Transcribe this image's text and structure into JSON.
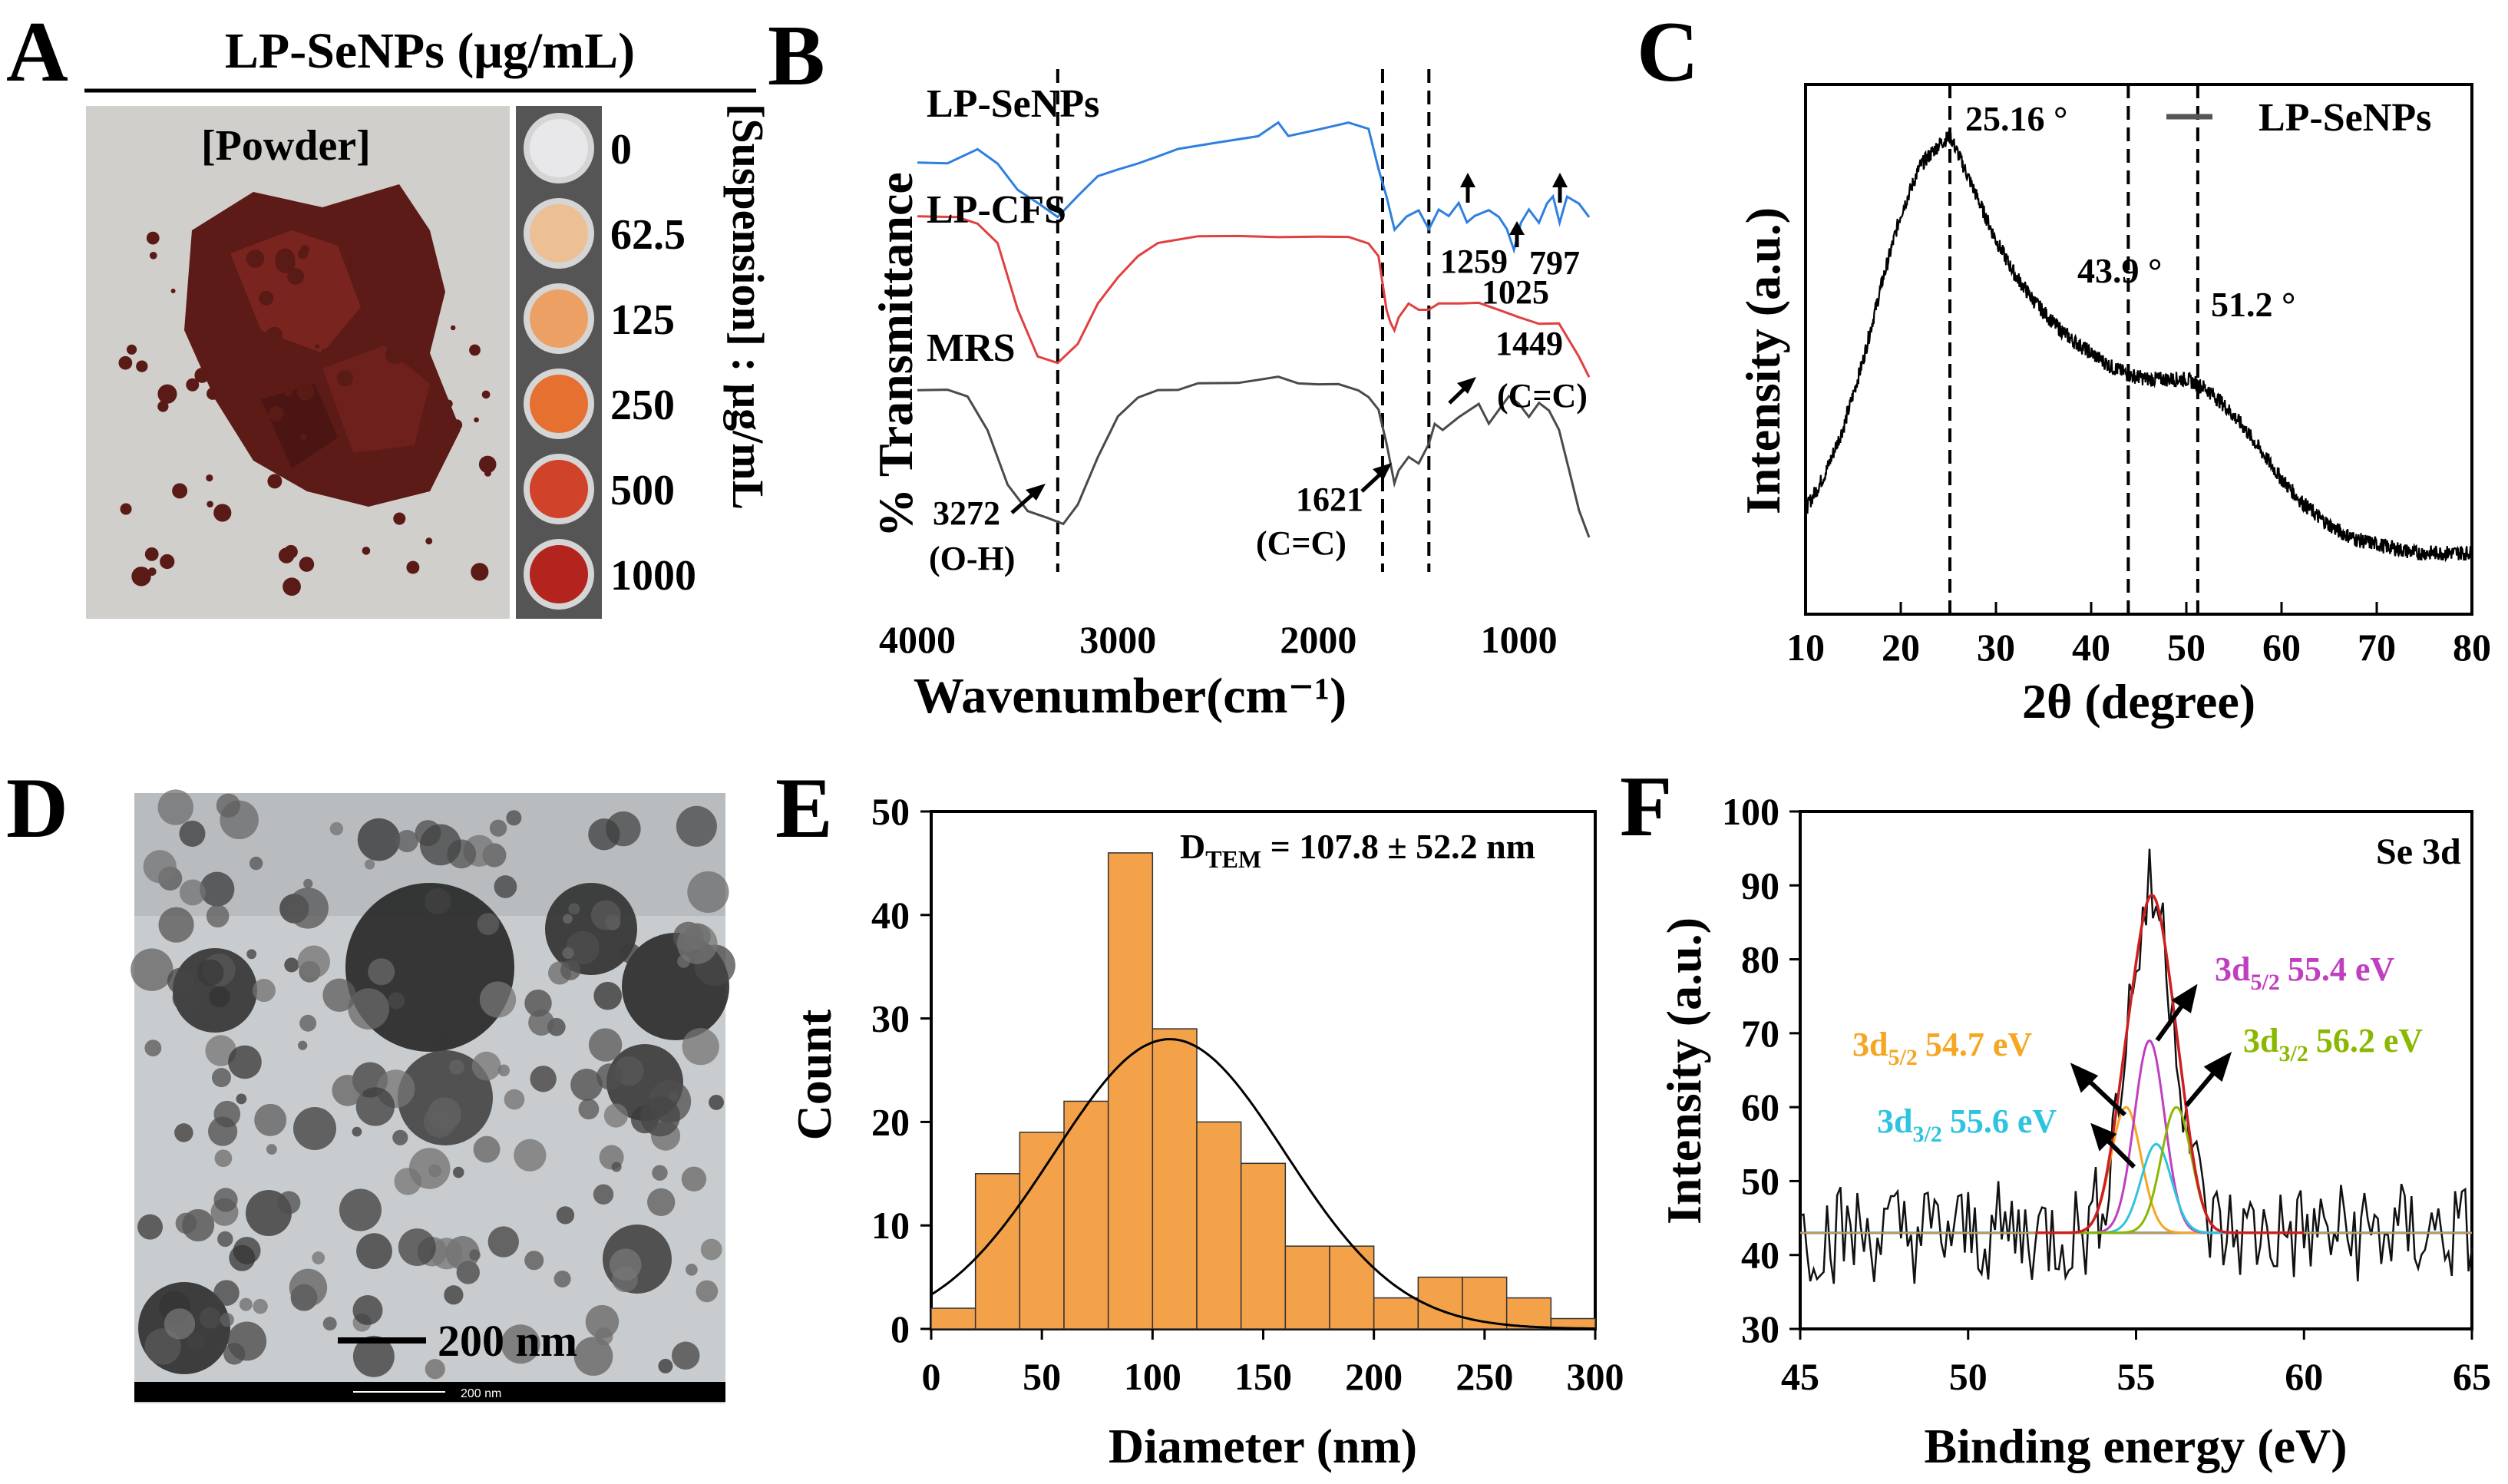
{
  "colors": {
    "blue": "#2f7fe0",
    "red": "#e04040",
    "gray": "#4a4a4a",
    "orange": "#f4a24a",
    "xps_orange": "#f5a623",
    "xps_purple": "#c03ec0",
    "xps_green": "#8ab800",
    "xps_cyan": "#2ec4e0",
    "xps_red": "#cc2020",
    "xps_base": "#2070d0"
  },
  "panelA": {
    "letter": "A",
    "title": "LP-SeNPs (μg/mL)",
    "powder_label": "[Powder]",
    "side_label": "[Suspension] : μg/mL",
    "concentrations": [
      "0",
      "62.5",
      "125",
      "250",
      "500",
      "1000"
    ],
    "well_colors": [
      "#e8e8ea",
      "#ecbf95",
      "#eda064",
      "#e6702f",
      "#d0422a",
      "#b3241f"
    ]
  },
  "panelB": {
    "letter": "B",
    "chart_data": {
      "type": "line",
      "xlabel": "Wavenumber(cm⁻¹)",
      "ylabel": "% Transmittance",
      "xlim": [
        4000,
        650
      ],
      "xticks": [
        "4000",
        "3000",
        "2000",
        "1000"
      ],
      "series": [
        {
          "name": "LP-SeNPs",
          "color": "#2f7fe0",
          "x": [
            4000,
            3850,
            3700,
            3600,
            3500,
            3400,
            3300,
            3200,
            3100,
            3000,
            2900,
            2800,
            2700,
            2500,
            2300,
            2200,
            2150,
            2000,
            1850,
            1750,
            1700,
            1660,
            1620,
            1560,
            1500,
            1449,
            1400,
            1350,
            1300,
            1259,
            1220,
            1150,
            1100,
            1060,
            1025,
            990,
            950,
            900,
            860,
            830,
            797,
            760,
            700,
            650
          ],
          "y": [
            0.84,
            0.84,
            0.86,
            0.84,
            0.8,
            0.78,
            0.76,
            0.79,
            0.82,
            0.83,
            0.84,
            0.85,
            0.86,
            0.87,
            0.88,
            0.9,
            0.88,
            0.89,
            0.9,
            0.89,
            0.83,
            0.79,
            0.74,
            0.76,
            0.77,
            0.74,
            0.77,
            0.76,
            0.78,
            0.75,
            0.76,
            0.77,
            0.76,
            0.74,
            0.71,
            0.75,
            0.77,
            0.75,
            0.78,
            0.79,
            0.75,
            0.79,
            0.78,
            0.76
          ]
        },
        {
          "name": "LP-CFS",
          "color": "#e04040",
          "x": [
            4000,
            3800,
            3700,
            3600,
            3500,
            3400,
            3300,
            3200,
            3100,
            3000,
            2900,
            2800,
            2600,
            2400,
            2200,
            2000,
            1850,
            1750,
            1700,
            1660,
            1640,
            1621,
            1600,
            1550,
            1500,
            1450,
            1400,
            1300,
            1200,
            1100,
            1000,
            900,
            800,
            700,
            650
          ],
          "y": [
            0.76,
            0.76,
            0.75,
            0.72,
            0.62,
            0.55,
            0.54,
            0.57,
            0.63,
            0.67,
            0.7,
            0.72,
            0.73,
            0.73,
            0.73,
            0.73,
            0.73,
            0.72,
            0.7,
            0.62,
            0.6,
            0.59,
            0.61,
            0.63,
            0.62,
            0.62,
            0.63,
            0.63,
            0.63,
            0.62,
            0.61,
            0.6,
            0.6,
            0.55,
            0.52
          ]
        },
        {
          "name": "MRS",
          "color": "#4a4a4a",
          "x": [
            4000,
            3850,
            3750,
            3650,
            3550,
            3450,
            3350,
            3272,
            3200,
            3100,
            3000,
            2900,
            2800,
            2700,
            2600,
            2400,
            2200,
            2100,
            2000,
            1900,
            1800,
            1750,
            1700,
            1660,
            1621,
            1600,
            1550,
            1500,
            1449,
            1420,
            1380,
            1300,
            1200,
            1150,
            1100,
            1050,
            1000,
            950,
            900,
            850,
            800,
            750,
            700,
            650
          ],
          "y": [
            0.5,
            0.5,
            0.49,
            0.44,
            0.36,
            0.32,
            0.31,
            0.3,
            0.33,
            0.4,
            0.46,
            0.49,
            0.5,
            0.5,
            0.51,
            0.51,
            0.52,
            0.51,
            0.51,
            0.51,
            0.5,
            0.49,
            0.47,
            0.42,
            0.36,
            0.38,
            0.4,
            0.39,
            0.42,
            0.45,
            0.44,
            0.46,
            0.48,
            0.45,
            0.47,
            0.49,
            0.48,
            0.46,
            0.48,
            0.47,
            0.44,
            0.38,
            0.32,
            0.28
          ]
        }
      ],
      "dashed_lines": [
        3300,
        1680,
        1449
      ],
      "annotations": [
        {
          "label": "3272",
          "sub": "(O-H)"
        },
        {
          "label": "1621",
          "sub": "(C=C)"
        },
        {
          "label": "1449",
          "sub": "(C=C)"
        },
        {
          "label": "1259"
        },
        {
          "label": "1025"
        },
        {
          "label": "797"
        }
      ]
    }
  },
  "panelC": {
    "letter": "C",
    "chart_data": {
      "type": "line",
      "xlabel": "2θ (degree)",
      "ylabel": "Intensity (a.u.)",
      "xlim": [
        10,
        80
      ],
      "xticks": [
        "10",
        "20",
        "30",
        "40",
        "50",
        "60",
        "70",
        "80"
      ],
      "legend": "LP-SeNPs",
      "peaks": [
        {
          "x": 25.16,
          "label": "25.16 °"
        },
        {
          "x": 43.9,
          "label": "43.9 °"
        },
        {
          "x": 51.2,
          "label": "51.2 °"
        }
      ],
      "series": [
        {
          "name": "LP-SeNPs",
          "x": [
            10,
            12,
            14,
            16,
            18,
            20,
            22,
            24,
            25.16,
            26,
            28,
            30,
            32,
            34,
            36,
            38,
            40,
            42,
            44,
            46,
            48,
            50,
            52,
            54,
            56,
            58,
            60,
            62,
            64,
            66,
            68,
            70,
            72,
            74,
            76,
            78,
            80
          ],
          "y": [
            0.18,
            0.26,
            0.37,
            0.52,
            0.7,
            0.86,
            0.97,
            1.02,
            1.04,
            1.0,
            0.9,
            0.8,
            0.72,
            0.66,
            0.61,
            0.57,
            0.54,
            0.51,
            0.49,
            0.48,
            0.48,
            0.48,
            0.46,
            0.42,
            0.37,
            0.31,
            0.25,
            0.2,
            0.16,
            0.13,
            0.11,
            0.1,
            0.09,
            0.08,
            0.08,
            0.08,
            0.08
          ]
        }
      ]
    }
  },
  "panelD": {
    "letter": "D",
    "scale_label": "200 nm",
    "footer_scale": "200 nm"
  },
  "panelE": {
    "letter": "E",
    "chart_data": {
      "type": "bar",
      "xlabel": "Diameter (nm)",
      "ylabel": "Count",
      "xlim": [
        0,
        300
      ],
      "ylim": [
        0,
        50
      ],
      "xticks": [
        "0",
        "50",
        "100",
        "150",
        "200",
        "250",
        "300"
      ],
      "yticks": [
        "0",
        "10",
        "20",
        "30",
        "40",
        "50"
      ],
      "bin_width": 20,
      "bin_starts": [
        0,
        20,
        40,
        60,
        80,
        100,
        120,
        140,
        160,
        180,
        200,
        220,
        240,
        260,
        280
      ],
      "values": [
        2,
        15,
        19,
        22,
        46,
        29,
        20,
        16,
        8,
        8,
        3,
        5,
        5,
        3,
        1
      ],
      "fit": {
        "type": "normal",
        "mean": 107.8,
        "sd": 52.2,
        "peak": 28
      },
      "annotation": {
        "main": "D",
        "sub": "TEM",
        "rest": " = 107.8 ± 52.2 nm"
      }
    }
  },
  "panelF": {
    "letter": "F",
    "chart_data": {
      "type": "line",
      "xlabel": "Binding energy (eV)",
      "ylabel": "Intensity (a.u.)",
      "xlim": [
        45,
        65
      ],
      "ylim": [
        30,
        100
      ],
      "xticks": [
        "45",
        "50",
        "55",
        "60",
        "65"
      ],
      "yticks": [
        "30",
        "40",
        "50",
        "60",
        "70",
        "80",
        "90",
        "100"
      ],
      "label": "Se 3d",
      "baseline": 43,
      "components": [
        {
          "orb": "3d",
          "sub": "5/2",
          "energy": "54.7 eV",
          "center": 54.7,
          "height": 17,
          "sigma": 0.45,
          "color": "#f5a623"
        },
        {
          "orb": "3d",
          "sub": "5/2",
          "energy": "55.4 eV",
          "center": 55.4,
          "height": 26,
          "sigma": 0.45,
          "color": "#c03ec0"
        },
        {
          "orb": "3d",
          "sub": "3/2",
          "energy": "55.6 eV",
          "center": 55.6,
          "height": 12,
          "sigma": 0.45,
          "color": "#2ec4e0"
        },
        {
          "orb": "3d",
          "sub": "3/2",
          "energy": "56.2 eV",
          "center": 56.2,
          "height": 17,
          "sigma": 0.45,
          "color": "#8ab800"
        }
      ]
    }
  }
}
